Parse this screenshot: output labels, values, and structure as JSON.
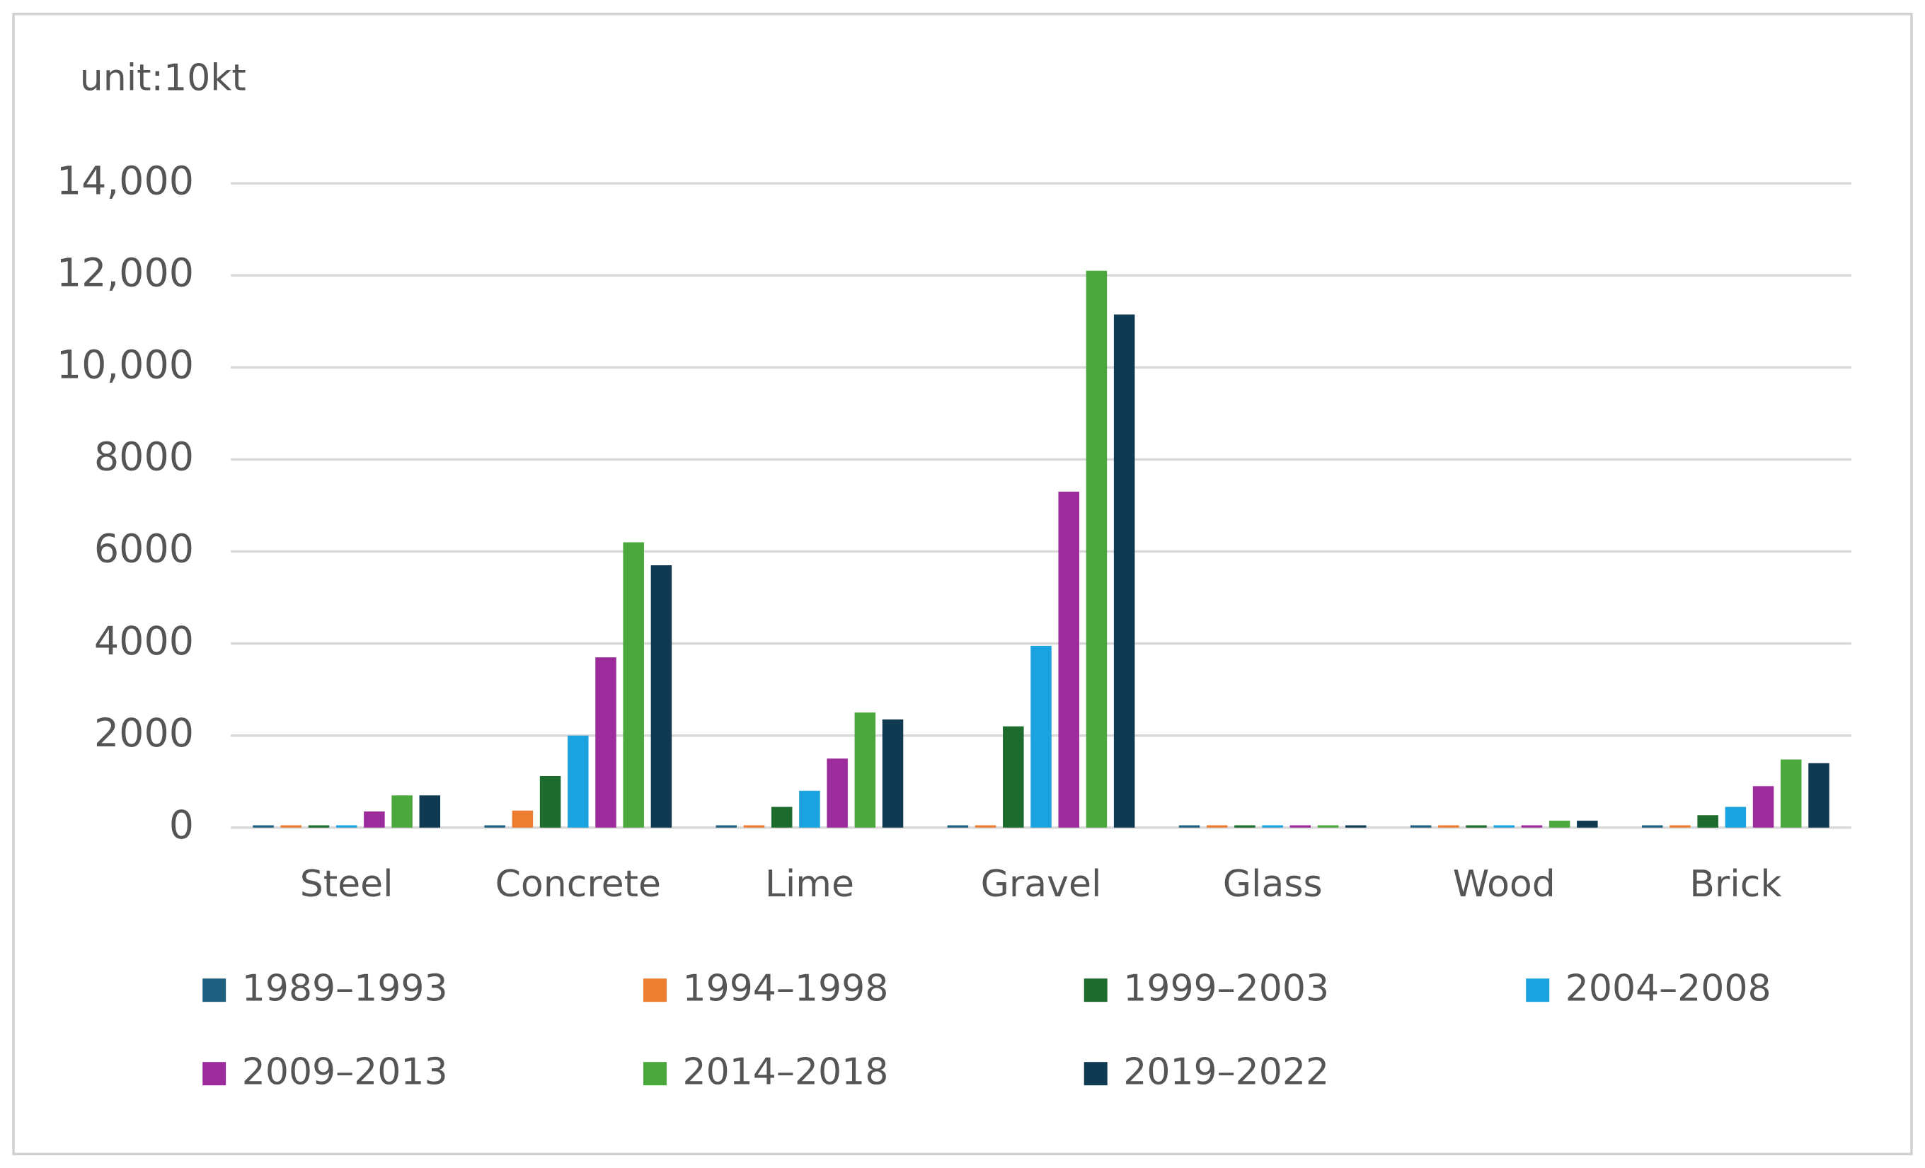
{
  "chart_data": {
    "type": "bar",
    "unit_label": "unit:10kt",
    "categories": [
      "Steel",
      "Concrete",
      "Lime",
      "Gravel",
      "Glass",
      "Wood",
      "Brick"
    ],
    "series": [
      {
        "name": "1989–1993",
        "color": "#1f5f7f",
        "values": [
          50,
          50,
          50,
          50,
          50,
          50,
          50
        ]
      },
      {
        "name": "1994–1998",
        "color": "#ed7d31",
        "values": [
          50,
          370,
          50,
          50,
          50,
          50,
          50
        ]
      },
      {
        "name": "1999–2003",
        "color": "#1e6b2e",
        "values": [
          50,
          1120,
          450,
          2200,
          50,
          50,
          270
        ]
      },
      {
        "name": "2004–2008",
        "color": "#1aa3de",
        "values": [
          50,
          2000,
          800,
          3950,
          50,
          50,
          450
        ]
      },
      {
        "name": "2009–2013",
        "color": "#9c2b9c",
        "values": [
          350,
          3700,
          1500,
          7300,
          50,
          50,
          900
        ]
      },
      {
        "name": "2014–2018",
        "color": "#4aa83c",
        "values": [
          700,
          6200,
          2500,
          12100,
          50,
          150,
          1480
        ]
      },
      {
        "name": "2019–2022",
        "color": "#0f3a52",
        "values": [
          700,
          5700,
          2350,
          11150,
          50,
          150,
          1400
        ]
      }
    ],
    "ylim": [
      0,
      14000
    ],
    "yticks": [
      0,
      2000,
      4000,
      6000,
      8000,
      {
        "value": 10000,
        "label": "10,000"
      },
      {
        "value": 12000,
        "label": "12,000"
      },
      {
        "value": 14000,
        "label": "14,000"
      }
    ],
    "grid": true,
    "legend": "bottom"
  }
}
